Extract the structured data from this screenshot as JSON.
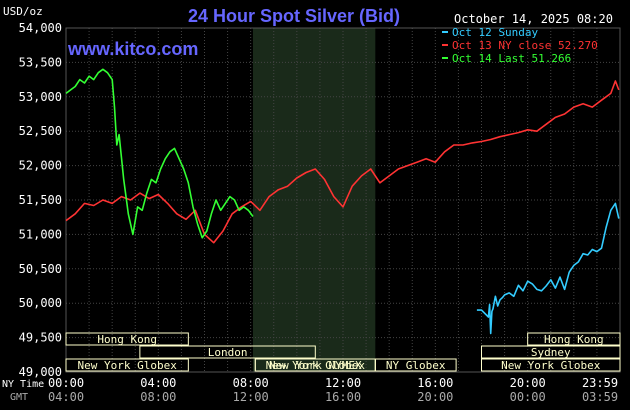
{
  "chart_data": {
    "type": "line",
    "title": "24 Hour Spot Silver (Bid)",
    "website": "www.kitco.com",
    "timestamp": "October 14, 2025 08:20",
    "ylabel": "USD/oz",
    "ylim": [
      49000,
      54000
    ],
    "yticks": [
      49000,
      49500,
      50000,
      50500,
      51000,
      51500,
      52000,
      52500,
      53000,
      53500,
      54000
    ],
    "ytick_labels": [
      "49,000",
      "49,500",
      "50,000",
      "50,500",
      "51,000",
      "51,500",
      "52,000",
      "52,500",
      "53,000",
      "53,500",
      "54,000"
    ],
    "xlim": [
      0,
      24
    ],
    "x_unit": "hours (NY time)",
    "xticks": [
      0,
      4,
      8,
      12,
      16,
      20,
      23.983
    ],
    "xtick_labels_ny": [
      "00:00",
      "04:00",
      "08:00",
      "12:00",
      "16:00",
      "20:00",
      "23:59"
    ],
    "xtick_labels_gmt": [
      "04:00",
      "08:00",
      "12:00",
      "16:00",
      "20:00",
      "00:00",
      "03:59"
    ],
    "x_row_labels": {
      "ny": "NY Time",
      "gmt": "GMT"
    },
    "grid": true,
    "legend_position": "top-right",
    "colors": {
      "background": "#000000",
      "grid": "#444444",
      "axis_text": "#ffffff",
      "title": "#6666ff",
      "website": "#6666ff",
      "highlight": "#1a2a1a",
      "session_box": "#ffffcc"
    },
    "highlight_range": [
      8.1,
      13.4
    ],
    "sessions": [
      {
        "label": "Hong Kong",
        "start": 0,
        "end": 5.3,
        "row": 0
      },
      {
        "label": "London",
        "start": 3.2,
        "end": 10.8,
        "row": 1
      },
      {
        "label": "New York Globex",
        "start": 0,
        "end": 5.3,
        "row": 2
      },
      {
        "label": "New York Globex",
        "start": 8.2,
        "end": 13.4,
        "row": 2
      },
      {
        "label": "New York NYMEX",
        "start": 8.2,
        "end": 13.4,
        "row": 2
      },
      {
        "label": "NY Globex",
        "start": 13.4,
        "end": 16.9,
        "row": 2
      },
      {
        "label": "Hong Kong",
        "start": 20.0,
        "end": 24.0,
        "row": 0
      },
      {
        "label": "Sydney",
        "start": 18.0,
        "end": 24.0,
        "row": 1
      },
      {
        "label": "New York Globex",
        "start": 18.0,
        "end": 24.0,
        "row": 2
      }
    ],
    "series": [
      {
        "name": "Oct 12 Sunday",
        "color": "#33ccff",
        "x": [
          17.8,
          18.0,
          18.3,
          18.35,
          18.4,
          18.45,
          18.5,
          18.6,
          18.7,
          18.8,
          18.9,
          19.0,
          19.2,
          19.4,
          19.6,
          19.8,
          20.0,
          20.2,
          20.4,
          20.6,
          20.8,
          21.0,
          21.2,
          21.4,
          21.6,
          21.8,
          22.0,
          22.2,
          22.4,
          22.6,
          22.8,
          23.0,
          23.2,
          23.4,
          23.6,
          23.8,
          23.95
        ],
        "values": [
          49900,
          49900,
          49800,
          49980,
          49560,
          49880,
          49920,
          50100,
          49960,
          50050,
          50080,
          50120,
          50150,
          50100,
          50260,
          50180,
          50320,
          50280,
          50200,
          50180,
          50250,
          50340,
          50220,
          50380,
          50200,
          50450,
          50550,
          50600,
          50720,
          50700,
          50780,
          50750,
          50800,
          51100,
          51350,
          51450,
          51230
        ]
      },
      {
        "name": "Oct 13 NY close 52.270",
        "color": "#ff3333",
        "x": [
          0.0,
          0.4,
          0.8,
          1.2,
          1.6,
          2.0,
          2.4,
          2.8,
          3.2,
          3.6,
          4.0,
          4.4,
          4.8,
          5.2,
          5.6,
          6.0,
          6.4,
          6.8,
          7.2,
          7.6,
          8.0,
          8.4,
          8.8,
          9.2,
          9.6,
          10.0,
          10.4,
          10.8,
          11.2,
          11.6,
          12.0,
          12.4,
          12.8,
          13.2,
          13.6,
          14.0,
          14.4,
          14.8,
          15.2,
          15.6,
          16.0,
          16.4,
          16.8,
          17.2,
          17.6,
          18.0,
          18.4,
          18.8,
          19.2,
          19.6,
          20.0,
          20.4,
          20.8,
          21.2,
          21.6,
          22.0,
          22.4,
          22.8,
          23.2,
          23.6,
          23.8,
          23.95
        ],
        "values": [
          51200,
          51300,
          51450,
          51420,
          51500,
          51450,
          51550,
          51500,
          51600,
          51520,
          51580,
          51450,
          51300,
          51220,
          51350,
          51000,
          50880,
          51050,
          51300,
          51400,
          51480,
          51350,
          51550,
          51650,
          51700,
          51820,
          51900,
          51950,
          51800,
          51550,
          51400,
          51700,
          51850,
          51950,
          51750,
          51850,
          51950,
          52000,
          52050,
          52100,
          52050,
          52200,
          52300,
          52300,
          52330,
          52350,
          52380,
          52420,
          52450,
          52480,
          52520,
          52500,
          52600,
          52700,
          52750,
          52850,
          52900,
          52850,
          52950,
          53050,
          53230,
          53100
        ]
      },
      {
        "name": "Oct 14 Last 51.266",
        "color": "#33ff33",
        "x": [
          0.0,
          0.2,
          0.4,
          0.6,
          0.8,
          1.0,
          1.2,
          1.4,
          1.6,
          1.8,
          2.0,
          2.1,
          2.2,
          2.3,
          2.5,
          2.7,
          2.9,
          3.1,
          3.3,
          3.5,
          3.7,
          3.9,
          4.1,
          4.3,
          4.5,
          4.7,
          4.9,
          5.1,
          5.3,
          5.5,
          5.7,
          5.9,
          6.1,
          6.3,
          6.5,
          6.7,
          6.9,
          7.1,
          7.3,
          7.5,
          7.7,
          7.9,
          8.1
        ],
        "values": [
          53050,
          53100,
          53150,
          53250,
          53200,
          53300,
          53250,
          53350,
          53400,
          53350,
          53250,
          52850,
          52300,
          52450,
          51800,
          51300,
          51000,
          51400,
          51350,
          51600,
          51800,
          51750,
          51950,
          52100,
          52200,
          52250,
          52100,
          51950,
          51750,
          51400,
          51150,
          50950,
          51050,
          51300,
          51500,
          51350,
          51450,
          51550,
          51500,
          51350,
          51400,
          51350,
          51260
        ]
      }
    ]
  }
}
